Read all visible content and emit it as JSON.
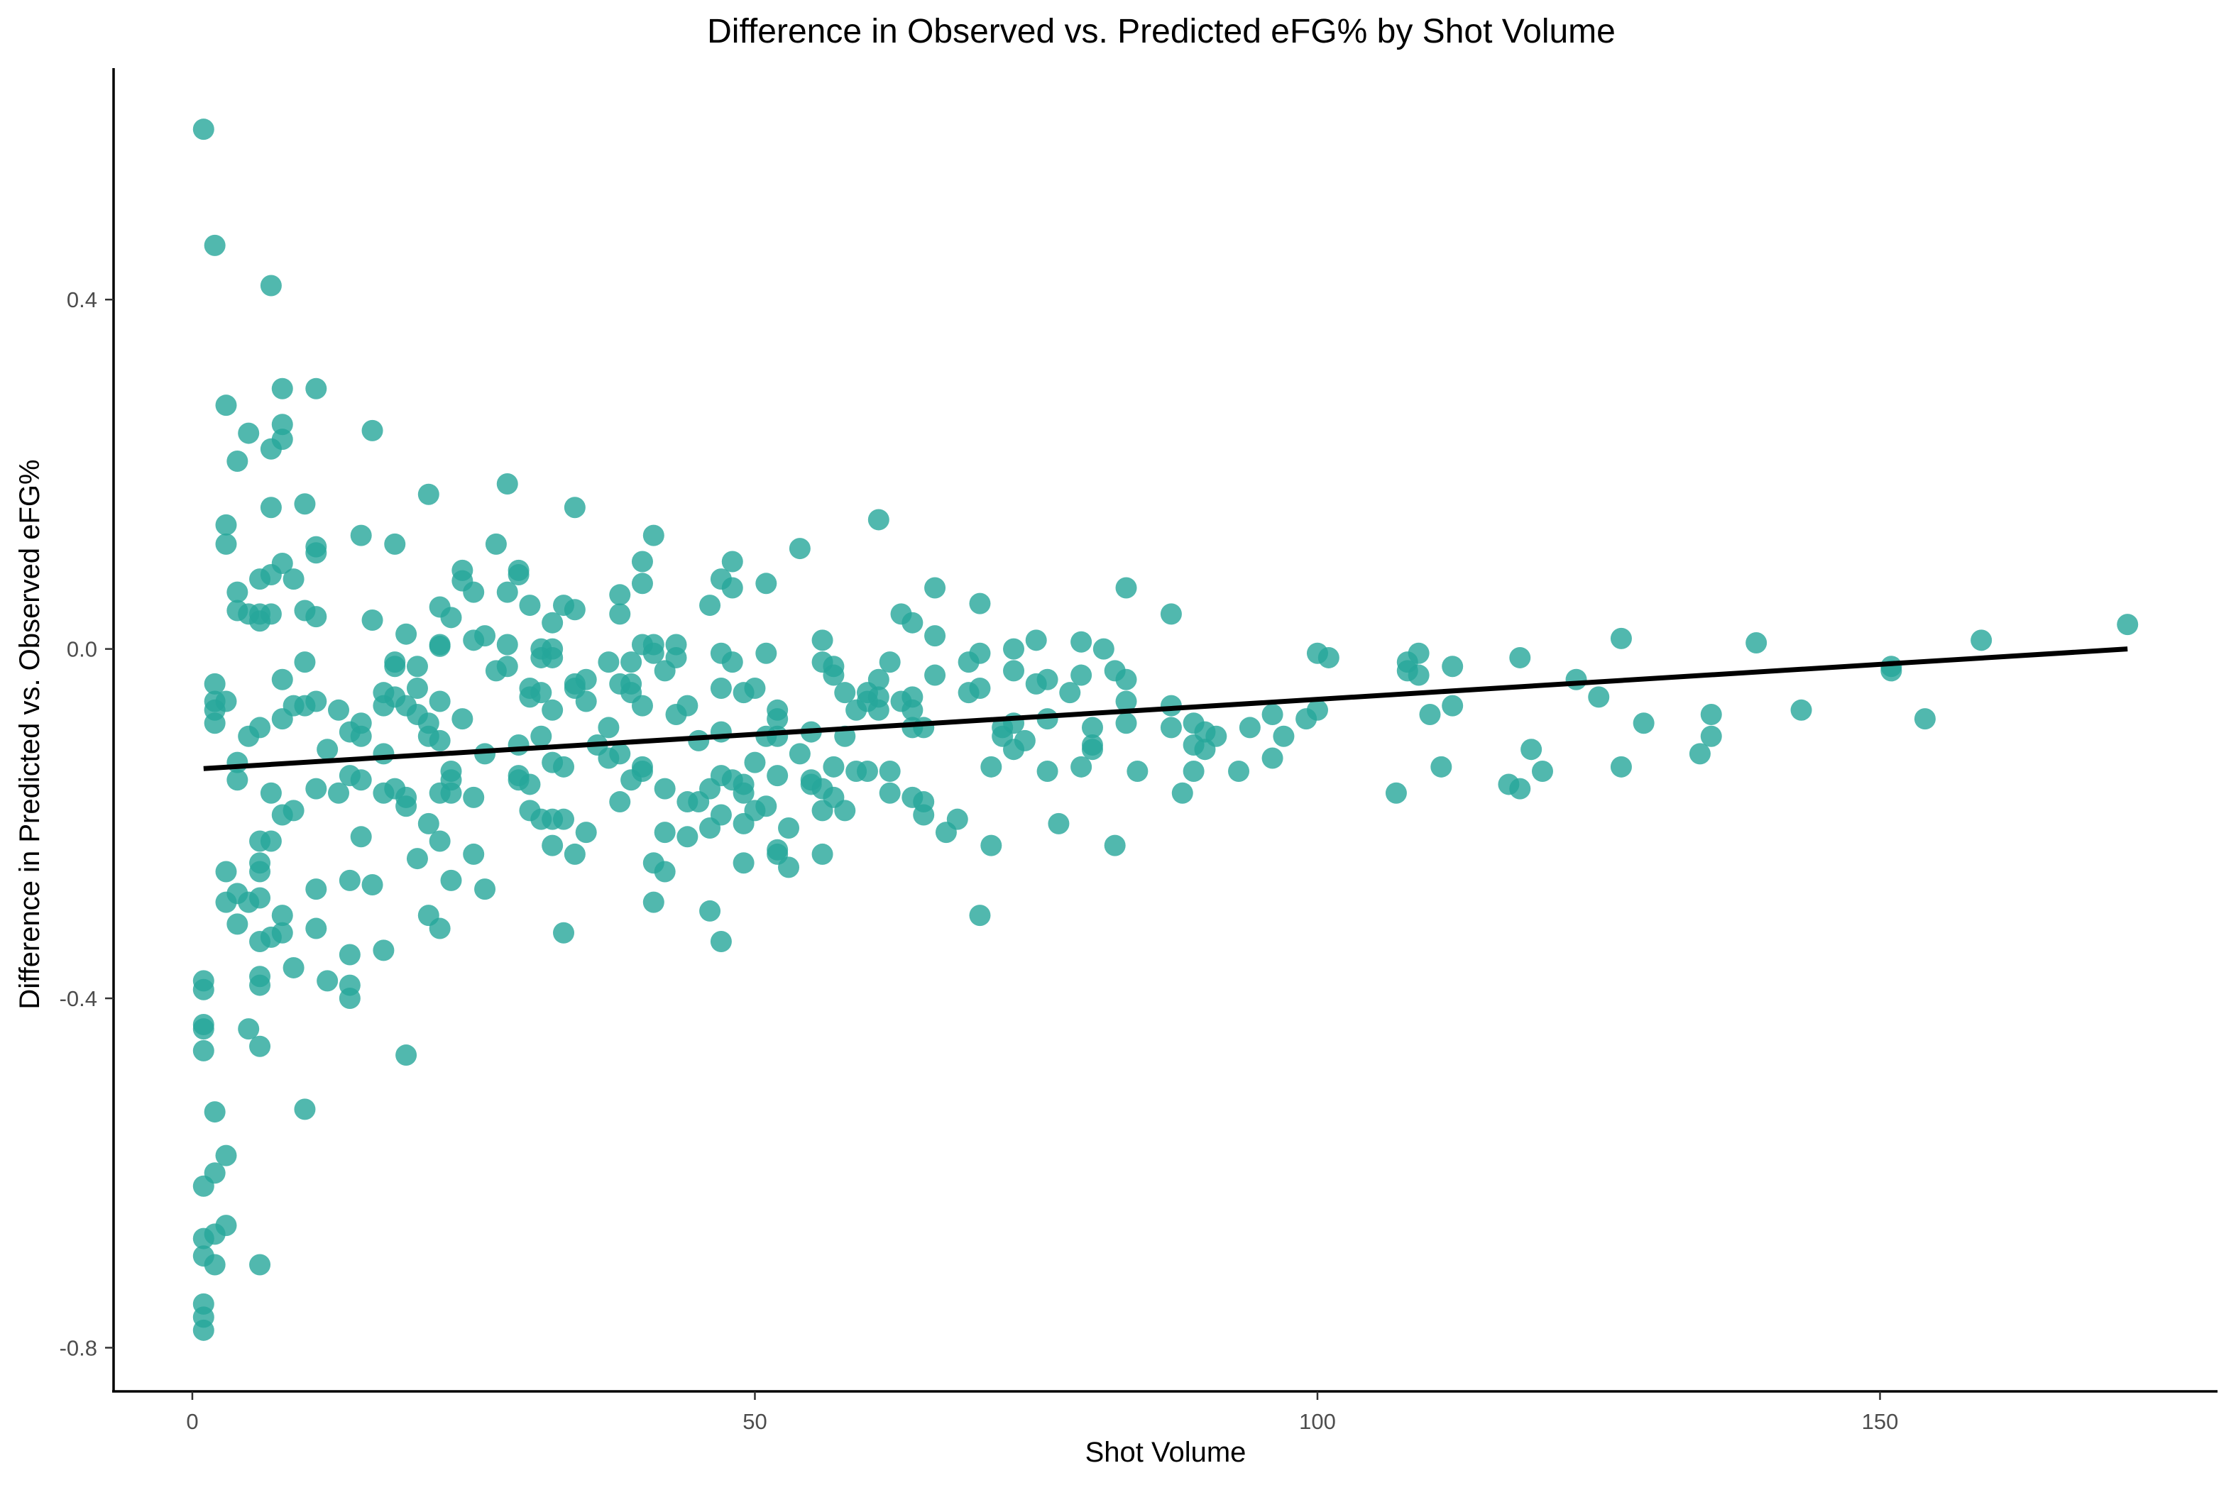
{
  "chart_data": {
    "type": "scatter",
    "title": "Difference in Observed vs. Predicted eFG% by Shot Volume",
    "xlabel": "Shot Volume",
    "ylabel": "Difference in Predicted vs. Observed eFG%",
    "xlim": [
      -7,
      180
    ],
    "ylim": [
      -0.85,
      0.665
    ],
    "x_ticks": [
      0,
      50,
      100,
      150
    ],
    "y_ticks": [
      -0.8,
      -0.4,
      0.0,
      0.4
    ],
    "y_tick_labels": [
      "-0.8",
      "-0.4",
      "0.0",
      "0.4"
    ],
    "grid": false,
    "legend": "none",
    "point_color": "#26a69a",
    "point_opacity": 0.8,
    "trend_color": "#000000",
    "trend_line": {
      "x": [
        1,
        172
      ],
      "y": [
        -0.137,
        0.0
      ]
    },
    "points": [
      [
        1,
        0.595
      ],
      [
        2,
        0.462
      ],
      [
        7,
        0.416
      ],
      [
        3,
        0.279
      ],
      [
        8,
        0.298
      ],
      [
        11,
        0.298
      ],
      [
        5,
        0.247
      ],
      [
        8,
        0.257
      ],
      [
        7,
        0.229
      ],
      [
        8,
        0.24
      ],
      [
        4,
        0.215
      ],
      [
        16,
        0.25
      ],
      [
        3,
        0.142
      ],
      [
        3,
        0.12
      ],
      [
        7,
        0.162
      ],
      [
        10,
        0.166
      ],
      [
        8,
        0.098
      ],
      [
        11,
        0.117
      ],
      [
        11,
        0.11
      ],
      [
        15,
        0.13
      ],
      [
        18,
        0.12
      ],
      [
        21,
        0.177
      ],
      [
        28,
        0.189
      ],
      [
        34,
        0.162
      ],
      [
        6,
        0.08
      ],
      [
        7,
        0.085
      ],
      [
        9,
        0.08
      ],
      [
        4,
        0.065
      ],
      [
        4,
        0.044
      ],
      [
        6,
        0.04
      ],
      [
        5,
        0.04
      ],
      [
        7,
        0.04
      ],
      [
        6,
        0.032
      ],
      [
        10,
        0.044
      ],
      [
        11,
        0.037
      ],
      [
        16,
        0.033
      ],
      [
        2,
        -0.04
      ],
      [
        2,
        -0.06
      ],
      [
        3,
        -0.06
      ],
      [
        2,
        -0.07
      ],
      [
        2,
        -0.085
      ],
      [
        5,
        -0.1
      ],
      [
        6,
        -0.09
      ],
      [
        8,
        -0.08
      ],
      [
        9,
        -0.065
      ],
      [
        10,
        -0.065
      ],
      [
        11,
        -0.06
      ],
      [
        10,
        -0.015
      ],
      [
        8,
        -0.035
      ],
      [
        4,
        -0.13
      ],
      [
        4,
        -0.15
      ],
      [
        7,
        -0.165
      ],
      [
        8,
        -0.19
      ],
      [
        9,
        -0.185
      ],
      [
        7,
        -0.22
      ],
      [
        6,
        -0.22
      ],
      [
        6,
        -0.245
      ],
      [
        6,
        -0.255
      ],
      [
        3,
        -0.255
      ],
      [
        4,
        -0.28
      ],
      [
        3,
        -0.29
      ],
      [
        5,
        -0.29
      ],
      [
        6,
        -0.285
      ],
      [
        4,
        -0.315
      ],
      [
        8,
        -0.305
      ],
      [
        6,
        -0.335
      ],
      [
        7,
        -0.33
      ],
      [
        8,
        -0.325
      ],
      [
        9,
        -0.365
      ],
      [
        6,
        -0.375
      ],
      [
        6,
        -0.385
      ],
      [
        1,
        -0.38
      ],
      [
        1,
        -0.39
      ],
      [
        1,
        -0.43
      ],
      [
        1,
        -0.435
      ],
      [
        5,
        -0.435
      ],
      [
        1,
        -0.46
      ],
      [
        6,
        -0.455
      ],
      [
        2,
        -0.53
      ],
      [
        10,
        -0.527
      ],
      [
        3,
        -0.58
      ],
      [
        2,
        -0.6
      ],
      [
        1,
        -0.615
      ],
      [
        3,
        -0.66
      ],
      [
        2,
        -0.67
      ],
      [
        1,
        -0.675
      ],
      [
        1,
        -0.695
      ],
      [
        2,
        -0.705
      ],
      [
        6,
        -0.705
      ],
      [
        1,
        -0.75
      ],
      [
        1,
        -0.765
      ],
      [
        1,
        -0.78
      ],
      [
        11,
        -0.16
      ],
      [
        11,
        -0.275
      ],
      [
        11,
        -0.32
      ],
      [
        12,
        -0.115
      ],
      [
        13,
        -0.07
      ],
      [
        13,
        -0.165
      ],
      [
        14,
        -0.095
      ],
      [
        14,
        -0.145
      ],
      [
        14,
        -0.265
      ],
      [
        14,
        -0.35
      ],
      [
        14,
        -0.385
      ],
      [
        14,
        -0.4
      ],
      [
        12,
        -0.38
      ],
      [
        15,
        -0.085
      ],
      [
        15,
        -0.1
      ],
      [
        15,
        -0.15
      ],
      [
        15,
        -0.215
      ],
      [
        16,
        -0.27
      ],
      [
        17,
        -0.345
      ],
      [
        17,
        -0.05
      ],
      [
        17,
        -0.065
      ],
      [
        17,
        -0.12
      ],
      [
        17,
        -0.165
      ],
      [
        18,
        -0.015
      ],
      [
        18,
        -0.02
      ],
      [
        18,
        -0.055
      ],
      [
        18,
        -0.16
      ],
      [
        19,
        -0.17
      ],
      [
        19,
        -0.18
      ],
      [
        19,
        0.017
      ],
      [
        19,
        -0.065
      ],
      [
        20,
        -0.045
      ],
      [
        20,
        -0.075
      ],
      [
        20,
        -0.02
      ],
      [
        20,
        -0.24
      ],
      [
        21,
        -0.085
      ],
      [
        21,
        -0.1
      ],
      [
        21,
        -0.2
      ],
      [
        21,
        -0.305
      ],
      [
        22,
        0.048
      ],
      [
        22,
        0.005
      ],
      [
        22,
        0.003
      ],
      [
        22,
        -0.06
      ],
      [
        22,
        -0.105
      ],
      [
        22,
        -0.165
      ],
      [
        22,
        -0.22
      ],
      [
        22,
        -0.32
      ],
      [
        19,
        -0.465
      ],
      [
        23,
        0.036
      ],
      [
        23,
        -0.14
      ],
      [
        23,
        -0.15
      ],
      [
        23,
        -0.165
      ],
      [
        23,
        -0.265
      ],
      [
        24,
        0.09
      ],
      [
        24,
        0.078
      ],
      [
        24,
        -0.08
      ],
      [
        25,
        0.065
      ],
      [
        25,
        0.01
      ],
      [
        25,
        -0.17
      ],
      [
        25,
        -0.235
      ],
      [
        26,
        -0.12
      ],
      [
        26,
        0.015
      ],
      [
        26,
        -0.275
      ],
      [
        27,
        0.12
      ],
      [
        27,
        -0.025
      ],
      [
        28,
        0.065
      ],
      [
        28,
        0.005
      ],
      [
        28,
        -0.02
      ],
      [
        29,
        0.09
      ],
      [
        29,
        0.085
      ],
      [
        29,
        -0.11
      ],
      [
        29,
        -0.145
      ],
      [
        29,
        -0.15
      ],
      [
        30,
        0.05
      ],
      [
        30,
        -0.045
      ],
      [
        30,
        -0.055
      ],
      [
        30,
        -0.155
      ],
      [
        30,
        -0.185
      ],
      [
        31,
        0.0
      ],
      [
        31,
        -0.01
      ],
      [
        31,
        -0.05
      ],
      [
        31,
        -0.1
      ],
      [
        31,
        -0.195
      ],
      [
        32,
        0.03
      ],
      [
        32,
        0.0
      ],
      [
        32,
        -0.01
      ],
      [
        32,
        -0.07
      ],
      [
        32,
        -0.13
      ],
      [
        32,
        -0.195
      ],
      [
        32,
        -0.225
      ],
      [
        33,
        0.05
      ],
      [
        33,
        -0.135
      ],
      [
        33,
        -0.195
      ],
      [
        33,
        -0.325
      ],
      [
        34,
        0.045
      ],
      [
        34,
        -0.04
      ],
      [
        34,
        -0.045
      ],
      [
        34,
        -0.235
      ],
      [
        35,
        -0.035
      ],
      [
        35,
        -0.06
      ],
      [
        35,
        -0.21
      ],
      [
        36,
        -0.11
      ],
      [
        37,
        -0.015
      ],
      [
        37,
        -0.09
      ],
      [
        37,
        -0.125
      ],
      [
        38,
        0.062
      ],
      [
        38,
        0.04
      ],
      [
        38,
        -0.04
      ],
      [
        38,
        -0.12
      ],
      [
        38,
        -0.175
      ],
      [
        39,
        -0.015
      ],
      [
        39,
        -0.04
      ],
      [
        39,
        -0.05
      ],
      [
        39,
        -0.15
      ],
      [
        40,
        0.1
      ],
      [
        40,
        0.075
      ],
      [
        40,
        0.005
      ],
      [
        40,
        -0.065
      ],
      [
        40,
        -0.135
      ],
      [
        40,
        -0.14
      ],
      [
        41,
        0.13
      ],
      [
        41,
        0.005
      ],
      [
        41,
        -0.005
      ],
      [
        41,
        -0.245
      ],
      [
        41,
        -0.29
      ],
      [
        42,
        -0.025
      ],
      [
        42,
        -0.16
      ],
      [
        42,
        -0.21
      ],
      [
        42,
        -0.255
      ],
      [
        43,
        0.005
      ],
      [
        43,
        -0.01
      ],
      [
        43,
        -0.075
      ],
      [
        44,
        -0.065
      ],
      [
        44,
        -0.175
      ],
      [
        44,
        -0.215
      ],
      [
        45,
        -0.105
      ],
      [
        45,
        -0.175
      ],
      [
        46,
        0.05
      ],
      [
        46,
        -0.16
      ],
      [
        46,
        -0.205
      ],
      [
        46,
        -0.3
      ],
      [
        47,
        0.08
      ],
      [
        47,
        -0.005
      ],
      [
        47,
        -0.045
      ],
      [
        47,
        -0.095
      ],
      [
        47,
        -0.145
      ],
      [
        47,
        -0.19
      ],
      [
        47,
        -0.335
      ],
      [
        48,
        0.1
      ],
      [
        48,
        0.07
      ],
      [
        48,
        -0.015
      ],
      [
        48,
        -0.15
      ],
      [
        49,
        -0.05
      ],
      [
        49,
        -0.155
      ],
      [
        49,
        -0.165
      ],
      [
        49,
        -0.2
      ],
      [
        49,
        -0.245
      ],
      [
        50,
        -0.045
      ],
      [
        50,
        -0.13
      ],
      [
        50,
        -0.185
      ],
      [
        51,
        0.075
      ],
      [
        51,
        -0.005
      ],
      [
        51,
        -0.1
      ],
      [
        51,
        -0.18
      ],
      [
        52,
        -0.07
      ],
      [
        52,
        -0.08
      ],
      [
        52,
        -0.1
      ],
      [
        52,
        -0.145
      ],
      [
        52,
        -0.23
      ],
      [
        52,
        -0.235
      ],
      [
        53,
        -0.205
      ],
      [
        53,
        -0.25
      ],
      [
        54,
        0.115
      ],
      [
        54,
        -0.12
      ],
      [
        55,
        -0.095
      ],
      [
        55,
        -0.15
      ],
      [
        55,
        -0.155
      ],
      [
        56,
        0.01
      ],
      [
        56,
        -0.015
      ],
      [
        56,
        -0.16
      ],
      [
        56,
        -0.185
      ],
      [
        56,
        -0.235
      ],
      [
        57,
        -0.02
      ],
      [
        57,
        -0.03
      ],
      [
        57,
        -0.135
      ],
      [
        57,
        -0.17
      ],
      [
        58,
        -0.05
      ],
      [
        58,
        -0.1
      ],
      [
        58,
        -0.185
      ],
      [
        59,
        -0.07
      ],
      [
        59,
        -0.14
      ],
      [
        60,
        -0.05
      ],
      [
        60,
        -0.06
      ],
      [
        60,
        -0.14
      ],
      [
        61,
        0.148
      ],
      [
        61,
        -0.035
      ],
      [
        61,
        -0.055
      ],
      [
        61,
        -0.07
      ],
      [
        62,
        -0.015
      ],
      [
        62,
        -0.14
      ],
      [
        62,
        -0.165
      ],
      [
        63,
        0.04
      ],
      [
        63,
        -0.06
      ],
      [
        64,
        0.03
      ],
      [
        64,
        -0.055
      ],
      [
        64,
        -0.07
      ],
      [
        64,
        -0.09
      ],
      [
        64,
        -0.17
      ],
      [
        65,
        -0.09
      ],
      [
        65,
        -0.175
      ],
      [
        65,
        -0.19
      ],
      [
        66,
        0.07
      ],
      [
        66,
        0.015
      ],
      [
        66,
        -0.03
      ],
      [
        67,
        -0.21
      ],
      [
        68,
        -0.195
      ],
      [
        69,
        -0.015
      ],
      [
        69,
        -0.05
      ],
      [
        70,
        0.052
      ],
      [
        70,
        -0.005
      ],
      [
        70,
        -0.045
      ],
      [
        70,
        -0.305
      ],
      [
        71,
        -0.135
      ],
      [
        71,
        -0.225
      ],
      [
        72,
        -0.09
      ],
      [
        72,
        -0.1
      ],
      [
        73,
        0.0
      ],
      [
        73,
        -0.025
      ],
      [
        73,
        -0.085
      ],
      [
        73,
        -0.115
      ],
      [
        74,
        -0.105
      ],
      [
        75,
        0.01
      ],
      [
        75,
        -0.04
      ],
      [
        76,
        -0.035
      ],
      [
        76,
        -0.08
      ],
      [
        76,
        -0.14
      ],
      [
        77,
        -0.2
      ],
      [
        78,
        -0.05
      ],
      [
        79,
        0.008
      ],
      [
        79,
        -0.03
      ],
      [
        79,
        -0.135
      ],
      [
        80,
        -0.09
      ],
      [
        80,
        -0.11
      ],
      [
        80,
        -0.115
      ],
      [
        81,
        0.0
      ],
      [
        82,
        -0.025
      ],
      [
        82,
        -0.225
      ],
      [
        83,
        0.07
      ],
      [
        83,
        -0.035
      ],
      [
        83,
        -0.06
      ],
      [
        83,
        -0.085
      ],
      [
        84,
        -0.14
      ],
      [
        87,
        0.04
      ],
      [
        87,
        -0.065
      ],
      [
        87,
        -0.09
      ],
      [
        88,
        -0.165
      ],
      [
        89,
        -0.085
      ],
      [
        89,
        -0.11
      ],
      [
        89,
        -0.14
      ],
      [
        90,
        -0.095
      ],
      [
        90,
        -0.115
      ],
      [
        91,
        -0.1
      ],
      [
        93,
        -0.14
      ],
      [
        94,
        -0.09
      ],
      [
        96,
        -0.075
      ],
      [
        96,
        -0.125
      ],
      [
        97,
        -0.1
      ],
      [
        99,
        -0.08
      ],
      [
        100,
        -0.07
      ],
      [
        100,
        -0.005
      ],
      [
        101,
        -0.01
      ],
      [
        107,
        -0.165
      ],
      [
        108,
        -0.015
      ],
      [
        108,
        -0.025
      ],
      [
        109,
        -0.005
      ],
      [
        109,
        -0.03
      ],
      [
        110,
        -0.075
      ],
      [
        111,
        -0.135
      ],
      [
        112,
        -0.065
      ],
      [
        112,
        -0.02
      ],
      [
        117,
        -0.155
      ],
      [
        118,
        -0.01
      ],
      [
        118,
        -0.16
      ],
      [
        119,
        -0.115
      ],
      [
        120,
        -0.14
      ],
      [
        123,
        -0.035
      ],
      [
        125,
        -0.055
      ],
      [
        127,
        0.012
      ],
      [
        127,
        -0.135
      ],
      [
        129,
        -0.085
      ],
      [
        134,
        -0.12
      ],
      [
        135,
        -0.075
      ],
      [
        135,
        -0.1
      ],
      [
        139,
        0.007
      ],
      [
        143,
        -0.07
      ],
      [
        151,
        -0.02
      ],
      [
        151,
        -0.025
      ],
      [
        154,
        -0.08
      ],
      [
        159,
        0.01
      ],
      [
        172,
        0.028
      ]
    ]
  }
}
